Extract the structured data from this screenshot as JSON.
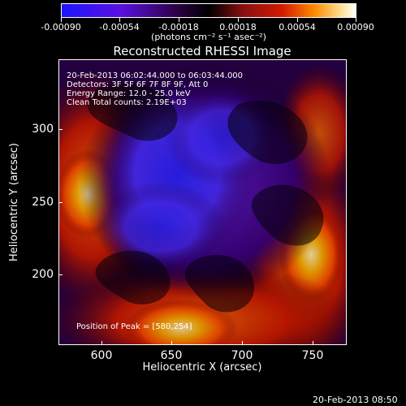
{
  "colorbar": {
    "ticks": [
      "-0.00090",
      "-0.00054",
      "-0.00018",
      "0.00018",
      "0.00054",
      "0.00090"
    ],
    "units": "(photons cm⁻² s⁻¹ asec⁻²)",
    "colors": [
      "#1a16ff",
      "#7a00c8",
      "#000000",
      "#8a1010",
      "#d11a00",
      "#ff6a00",
      "#ffb000",
      "#ffffff"
    ]
  },
  "title": "Reconstructed RHESSI Image",
  "overlay": {
    "line1": "20-Feb-2013 06:02:44.000 to 06:03:44.000",
    "line2": "Detectors: 3F 5F 6F 7F 8F 9F, Att 0",
    "line3": "Energy Range: 12.0 - 25.0 keV",
    "line4": "Clean    Total counts: 2.19E+03",
    "peak": "Position of Peak = [580,254]"
  },
  "axes": {
    "xlabel": "Heliocentric X (arcsec)",
    "ylabel": "Heliocentric Y (arcsec)",
    "xticks": [
      "600",
      "650",
      "700",
      "750"
    ],
    "yticks": [
      "300",
      "250",
      "200"
    ]
  },
  "footer": {
    "timestamp": "20-Feb-2013 08:50"
  }
}
